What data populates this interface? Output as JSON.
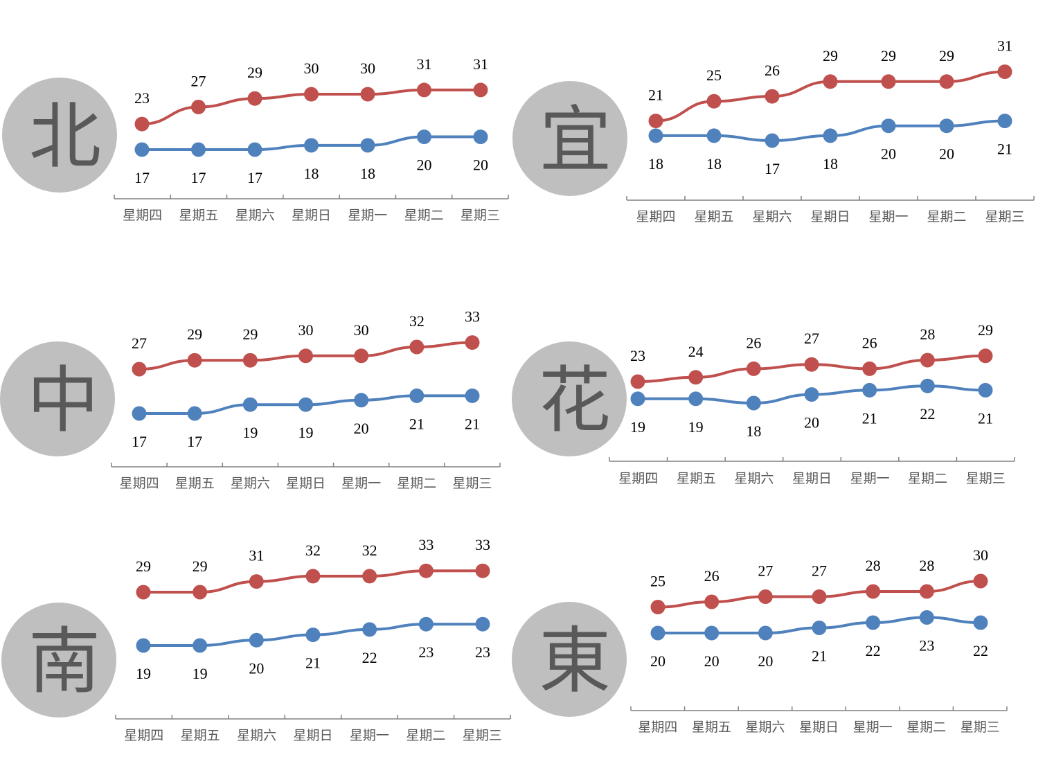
{
  "colors": {
    "high": "#C0504D",
    "low": "#4F81BD",
    "region_bg": "#BFBFBF",
    "region_text": "#595959",
    "axis": "#808080"
  },
  "chart_data": [
    {
      "type": "line",
      "region": "北",
      "categories": [
        "星期四",
        "星期五",
        "星期六",
        "星期日",
        "星期一",
        "星期二",
        "星期三"
      ],
      "series": [
        {
          "values": [
            23,
            27,
            29,
            30,
            30,
            31,
            31
          ]
        },
        {
          "values": [
            17,
            17,
            17,
            18,
            18,
            20,
            20
          ]
        }
      ]
    },
    {
      "type": "line",
      "region": "宜",
      "categories": [
        "星期四",
        "星期五",
        "星期六",
        "星期日",
        "星期一",
        "星期二",
        "星期三"
      ],
      "series": [
        {
          "values": [
            21,
            25,
            26,
            29,
            29,
            29,
            31
          ]
        },
        {
          "values": [
            18,
            18,
            17,
            18,
            20,
            20,
            21
          ]
        }
      ]
    },
    {
      "type": "line",
      "region": "中",
      "categories": [
        "星期四",
        "星期五",
        "星期六",
        "星期日",
        "星期一",
        "星期二",
        "星期三"
      ],
      "series": [
        {
          "values": [
            27,
            29,
            29,
            30,
            30,
            32,
            33
          ]
        },
        {
          "values": [
            17,
            17,
            19,
            19,
            20,
            21,
            21
          ]
        }
      ]
    },
    {
      "type": "line",
      "region": "花",
      "categories": [
        "星期四",
        "星期五",
        "星期六",
        "星期日",
        "星期一",
        "星期二",
        "星期三"
      ],
      "series": [
        {
          "values": [
            23,
            24,
            26,
            27,
            26,
            28,
            29
          ]
        },
        {
          "values": [
            19,
            19,
            18,
            20,
            21,
            22,
            21
          ]
        }
      ]
    },
    {
      "type": "line",
      "region": "南",
      "categories": [
        "星期四",
        "星期五",
        "星期六",
        "星期日",
        "星期一",
        "星期二",
        "星期三"
      ],
      "series": [
        {
          "values": [
            29,
            29,
            31,
            32,
            32,
            33,
            33
          ]
        },
        {
          "values": [
            19,
            19,
            20,
            21,
            22,
            23,
            23
          ]
        }
      ]
    },
    {
      "type": "line",
      "region": "東",
      "categories": [
        "星期四",
        "星期五",
        "星期六",
        "星期日",
        "星期一",
        "星期二",
        "星期三"
      ],
      "series": [
        {
          "values": [
            25,
            26,
            27,
            27,
            28,
            28,
            30
          ]
        },
        {
          "values": [
            20,
            20,
            20,
            21,
            22,
            23,
            22
          ]
        }
      ]
    }
  ]
}
